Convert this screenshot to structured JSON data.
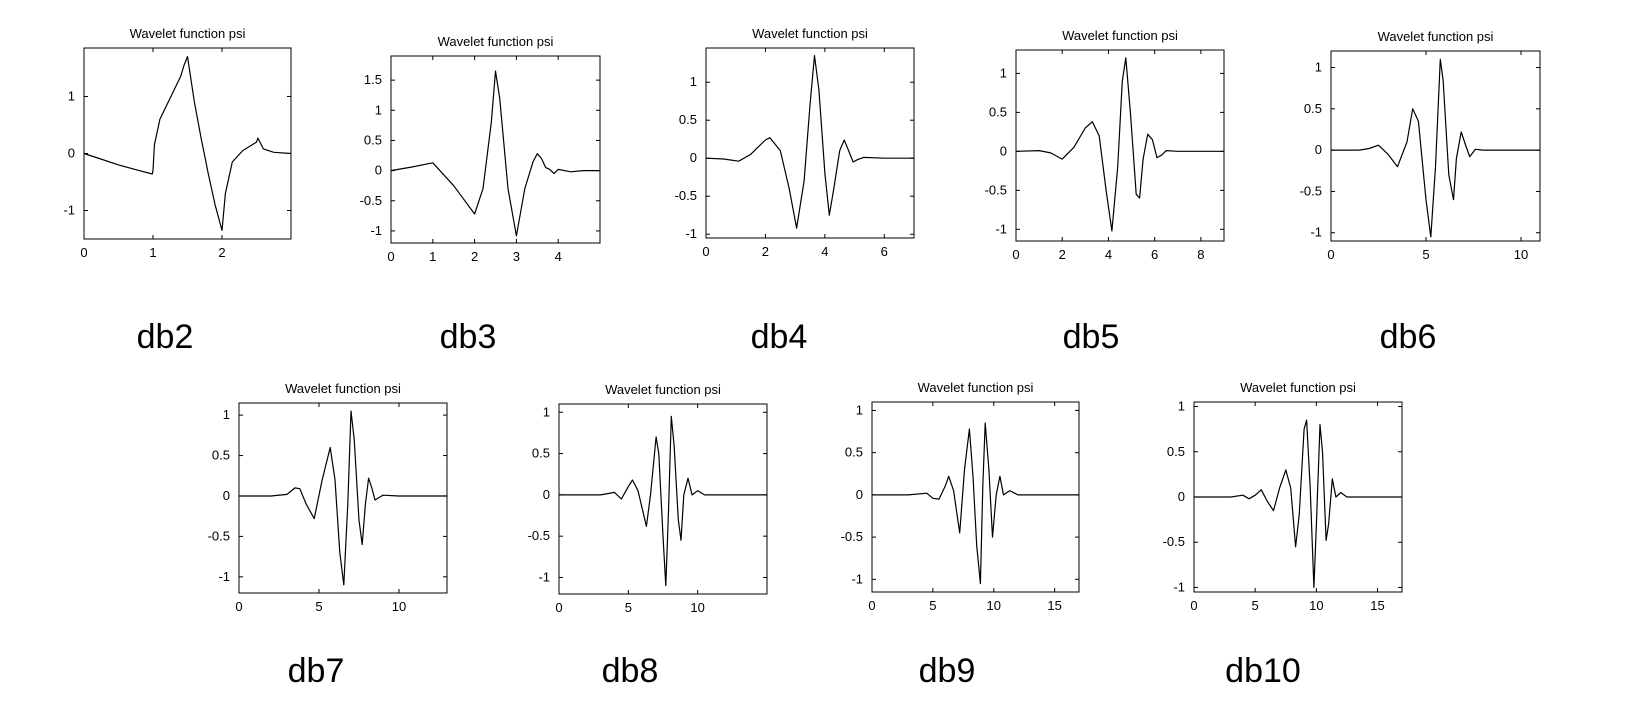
{
  "chart_data": [
    {
      "type": "line",
      "title": "Wavelet function psi",
      "label": "db2",
      "xlim": [
        0,
        3
      ],
      "ylim": [
        -1.5,
        1.85
      ],
      "xticks": [
        0,
        1,
        2
      ],
      "yticks": [
        -1,
        0,
        1
      ],
      "series": [
        {
          "points": [
            [
              0,
              0
            ],
            [
              0.2,
              -0.08
            ],
            [
              0.5,
              -0.2
            ],
            [
              0.8,
              -0.3
            ],
            [
              0.99,
              -0.36
            ],
            [
              1.0,
              -0.3
            ],
            [
              1.02,
              0.15
            ],
            [
              1.1,
              0.6
            ],
            [
              1.2,
              0.85
            ],
            [
              1.3,
              1.1
            ],
            [
              1.4,
              1.35
            ],
            [
              1.45,
              1.55
            ],
            [
              1.5,
              1.7
            ],
            [
              1.6,
              0.9
            ],
            [
              1.7,
              0.25
            ],
            [
              1.75,
              -0.05
            ],
            [
              1.8,
              -0.35
            ],
            [
              1.9,
              -0.9
            ],
            [
              2.0,
              -1.35
            ],
            [
              2.05,
              -0.7
            ],
            [
              2.15,
              -0.15
            ],
            [
              2.3,
              0.05
            ],
            [
              2.5,
              0.2
            ],
            [
              2.52,
              0.27
            ],
            [
              2.6,
              0.08
            ],
            [
              2.75,
              0.02
            ],
            [
              3.0,
              0.0
            ]
          ]
        }
      ]
    },
    {
      "type": "line",
      "title": "Wavelet function psi",
      "label": "db3",
      "xlim": [
        0,
        5
      ],
      "ylim": [
        -1.2,
        1.9
      ],
      "xticks": [
        0,
        1,
        2,
        3,
        4
      ],
      "yticks": [
        -1,
        -0.5,
        0,
        0.5,
        1,
        1.5
      ],
      "series": [
        {
          "points": [
            [
              0,
              0
            ],
            [
              0.5,
              0.06
            ],
            [
              1.0,
              0.13
            ],
            [
              1.5,
              -0.25
            ],
            [
              2.0,
              -0.72
            ],
            [
              2.2,
              -0.3
            ],
            [
              2.4,
              0.8
            ],
            [
              2.5,
              1.65
            ],
            [
              2.6,
              1.2
            ],
            [
              2.8,
              -0.3
            ],
            [
              3.0,
              -1.08
            ],
            [
              3.2,
              -0.3
            ],
            [
              3.4,
              0.15
            ],
            [
              3.5,
              0.28
            ],
            [
              3.6,
              0.2
            ],
            [
              3.7,
              0.05
            ],
            [
              3.8,
              0.02
            ],
            [
              3.9,
              -0.05
            ],
            [
              4.0,
              0.02
            ],
            [
              4.3,
              -0.02
            ],
            [
              4.6,
              0.0
            ],
            [
              5.0,
              0.0
            ]
          ]
        }
      ]
    },
    {
      "type": "line",
      "title": "Wavelet function psi",
      "label": "db4",
      "xlim": [
        0,
        7
      ],
      "ylim": [
        -1.05,
        1.45
      ],
      "xticks": [
        0,
        2,
        4,
        6
      ],
      "yticks": [
        -1,
        -0.5,
        0,
        0.5,
        1
      ],
      "series": [
        {
          "points": [
            [
              0,
              0
            ],
            [
              0.6,
              -0.01
            ],
            [
              1.1,
              -0.04
            ],
            [
              1.5,
              0.05
            ],
            [
              2.0,
              0.24
            ],
            [
              2.15,
              0.27
            ],
            [
              2.5,
              0.1
            ],
            [
              2.8,
              -0.4
            ],
            [
              3.05,
              -0.92
            ],
            [
              3.3,
              -0.3
            ],
            [
              3.5,
              0.7
            ],
            [
              3.65,
              1.35
            ],
            [
              3.8,
              0.9
            ],
            [
              4.0,
              -0.2
            ],
            [
              4.15,
              -0.75
            ],
            [
              4.3,
              -0.4
            ],
            [
              4.5,
              0.1
            ],
            [
              4.65,
              0.24
            ],
            [
              4.8,
              0.1
            ],
            [
              4.95,
              -0.05
            ],
            [
              5.1,
              -0.02
            ],
            [
              5.3,
              0.01
            ],
            [
              6.0,
              0.0
            ],
            [
              7.0,
              0.0
            ]
          ]
        }
      ]
    },
    {
      "type": "line",
      "title": "Wavelet function psi",
      "label": "db5",
      "xlim": [
        0,
        9
      ],
      "ylim": [
        -1.15,
        1.3
      ],
      "xticks": [
        0,
        2,
        4,
        6,
        8
      ],
      "yticks": [
        -1,
        -0.5,
        0,
        0.5,
        1
      ],
      "series": [
        {
          "points": [
            [
              0,
              0
            ],
            [
              1.0,
              0.01
            ],
            [
              1.5,
              -0.02
            ],
            [
              2.0,
              -0.1
            ],
            [
              2.5,
              0.05
            ],
            [
              3.0,
              0.3
            ],
            [
              3.3,
              0.38
            ],
            [
              3.6,
              0.2
            ],
            [
              3.9,
              -0.5
            ],
            [
              4.15,
              -1.02
            ],
            [
              4.4,
              -0.2
            ],
            [
              4.6,
              0.9
            ],
            [
              4.75,
              1.2
            ],
            [
              4.95,
              0.5
            ],
            [
              5.2,
              -0.55
            ],
            [
              5.35,
              -0.6
            ],
            [
              5.5,
              -0.1
            ],
            [
              5.7,
              0.22
            ],
            [
              5.9,
              0.15
            ],
            [
              6.1,
              -0.08
            ],
            [
              6.3,
              -0.05
            ],
            [
              6.5,
              0.01
            ],
            [
              7.0,
              0.0
            ],
            [
              9.0,
              0.0
            ]
          ]
        }
      ]
    },
    {
      "type": "line",
      "title": "Wavelet function psi",
      "label": "db6",
      "xlim": [
        0,
        11
      ],
      "ylim": [
        -1.1,
        1.2
      ],
      "xticks": [
        0,
        5,
        10
      ],
      "yticks": [
        -1,
        -0.5,
        0,
        0.5,
        1
      ],
      "series": [
        {
          "points": [
            [
              0,
              0
            ],
            [
              1.5,
              0.0
            ],
            [
              2.0,
              0.02
            ],
            [
              2.5,
              0.06
            ],
            [
              3.0,
              -0.05
            ],
            [
              3.5,
              -0.2
            ],
            [
              4.0,
              0.1
            ],
            [
              4.3,
              0.5
            ],
            [
              4.6,
              0.35
            ],
            [
              5.0,
              -0.6
            ],
            [
              5.25,
              -1.05
            ],
            [
              5.5,
              -0.2
            ],
            [
              5.75,
              1.1
            ],
            [
              5.9,
              0.85
            ],
            [
              6.2,
              -0.3
            ],
            [
              6.45,
              -0.6
            ],
            [
              6.6,
              -0.1
            ],
            [
              6.85,
              0.22
            ],
            [
              7.1,
              0.05
            ],
            [
              7.3,
              -0.08
            ],
            [
              7.6,
              0.01
            ],
            [
              8.0,
              0.0
            ],
            [
              11.0,
              0.0
            ]
          ]
        }
      ]
    },
    {
      "type": "line",
      "title": "Wavelet function psi",
      "label": "db7",
      "xlim": [
        0,
        13
      ],
      "ylim": [
        -1.2,
        1.15
      ],
      "xticks": [
        0,
        5,
        10
      ],
      "yticks": [
        -1,
        -0.5,
        0,
        0.5,
        1
      ],
      "series": [
        {
          "points": [
            [
              0,
              0
            ],
            [
              2.0,
              0.0
            ],
            [
              3.0,
              0.02
            ],
            [
              3.5,
              0.1
            ],
            [
              3.8,
              0.09
            ],
            [
              4.2,
              -0.1
            ],
            [
              4.7,
              -0.28
            ],
            [
              5.2,
              0.2
            ],
            [
              5.7,
              0.6
            ],
            [
              6.0,
              0.2
            ],
            [
              6.3,
              -0.7
            ],
            [
              6.55,
              -1.1
            ],
            [
              6.8,
              -0.1
            ],
            [
              7.0,
              1.05
            ],
            [
              7.2,
              0.7
            ],
            [
              7.5,
              -0.3
            ],
            [
              7.7,
              -0.6
            ],
            [
              7.9,
              -0.1
            ],
            [
              8.1,
              0.22
            ],
            [
              8.3,
              0.1
            ],
            [
              8.5,
              -0.05
            ],
            [
              9.0,
              0.01
            ],
            [
              10.0,
              0.0
            ],
            [
              13.0,
              0.0
            ]
          ]
        }
      ]
    },
    {
      "type": "line",
      "title": "Wavelet function psi",
      "label": "db8",
      "xlim": [
        0,
        15
      ],
      "ylim": [
        -1.2,
        1.1
      ],
      "xticks": [
        0,
        5,
        10
      ],
      "yticks": [
        -1,
        -0.5,
        0,
        0.5,
        1
      ],
      "series": [
        {
          "points": [
            [
              0,
              0
            ],
            [
              3.0,
              0.0
            ],
            [
              4.0,
              0.03
            ],
            [
              4.5,
              -0.05
            ],
            [
              5.0,
              0.1
            ],
            [
              5.3,
              0.18
            ],
            [
              5.7,
              0.05
            ],
            [
              6.3,
              -0.38
            ],
            [
              6.6,
              0.0
            ],
            [
              7.0,
              0.7
            ],
            [
              7.2,
              0.5
            ],
            [
              7.5,
              -0.5
            ],
            [
              7.7,
              -1.1
            ],
            [
              7.9,
              -0.2
            ],
            [
              8.1,
              0.95
            ],
            [
              8.3,
              0.6
            ],
            [
              8.6,
              -0.3
            ],
            [
              8.8,
              -0.55
            ],
            [
              9.0,
              0.0
            ],
            [
              9.3,
              0.2
            ],
            [
              9.6,
              0.0
            ],
            [
              10.0,
              0.05
            ],
            [
              10.5,
              0.0
            ],
            [
              15.0,
              0.0
            ]
          ]
        }
      ]
    },
    {
      "type": "line",
      "title": "Wavelet function psi",
      "label": "db9",
      "xlim": [
        0,
        17
      ],
      "ylim": [
        -1.15,
        1.1
      ],
      "xticks": [
        0,
        5,
        10,
        15
      ],
      "yticks": [
        -1,
        -0.5,
        0,
        0.5,
        1
      ],
      "series": [
        {
          "points": [
            [
              0,
              0
            ],
            [
              3.0,
              0.0
            ],
            [
              4.5,
              0.02
            ],
            [
              5.0,
              -0.04
            ],
            [
              5.5,
              -0.05
            ],
            [
              6.0,
              0.1
            ],
            [
              6.3,
              0.22
            ],
            [
              6.7,
              0.05
            ],
            [
              7.2,
              -0.45
            ],
            [
              7.6,
              0.3
            ],
            [
              8.0,
              0.78
            ],
            [
              8.3,
              0.2
            ],
            [
              8.6,
              -0.6
            ],
            [
              8.9,
              -1.05
            ],
            [
              9.1,
              0.1
            ],
            [
              9.3,
              0.85
            ],
            [
              9.6,
              0.3
            ],
            [
              9.9,
              -0.5
            ],
            [
              10.2,
              0.0
            ],
            [
              10.5,
              0.22
            ],
            [
              10.8,
              0.0
            ],
            [
              11.3,
              0.05
            ],
            [
              12.0,
              0.0
            ],
            [
              17.0,
              0.0
            ]
          ]
        }
      ]
    },
    {
      "type": "line",
      "title": "Wavelet function psi",
      "label": "db10",
      "xlim": [
        0,
        17
      ],
      "ylim": [
        -1.05,
        1.05
      ],
      "xticks": [
        0,
        5,
        10,
        15
      ],
      "yticks": [
        -1,
        -0.5,
        0,
        0.5,
        1
      ],
      "series": [
        {
          "points": [
            [
              0,
              0
            ],
            [
              3.0,
              0.0
            ],
            [
              4.0,
              0.02
            ],
            [
              4.5,
              -0.02
            ],
            [
              5.0,
              0.02
            ],
            [
              5.5,
              0.08
            ],
            [
              6.0,
              -0.05
            ],
            [
              6.5,
              -0.15
            ],
            [
              7.0,
              0.1
            ],
            [
              7.5,
              0.3
            ],
            [
              7.9,
              0.1
            ],
            [
              8.3,
              -0.55
            ],
            [
              8.6,
              -0.2
            ],
            [
              9.0,
              0.75
            ],
            [
              9.2,
              0.85
            ],
            [
              9.5,
              0.1
            ],
            [
              9.8,
              -1.0
            ],
            [
              10.0,
              -0.3
            ],
            [
              10.3,
              0.8
            ],
            [
              10.5,
              0.5
            ],
            [
              10.8,
              -0.48
            ],
            [
              11.0,
              -0.3
            ],
            [
              11.3,
              0.2
            ],
            [
              11.6,
              0.0
            ],
            [
              12.0,
              0.05
            ],
            [
              12.5,
              0.0
            ],
            [
              17.0,
              0.0
            ]
          ]
        }
      ]
    }
  ]
}
